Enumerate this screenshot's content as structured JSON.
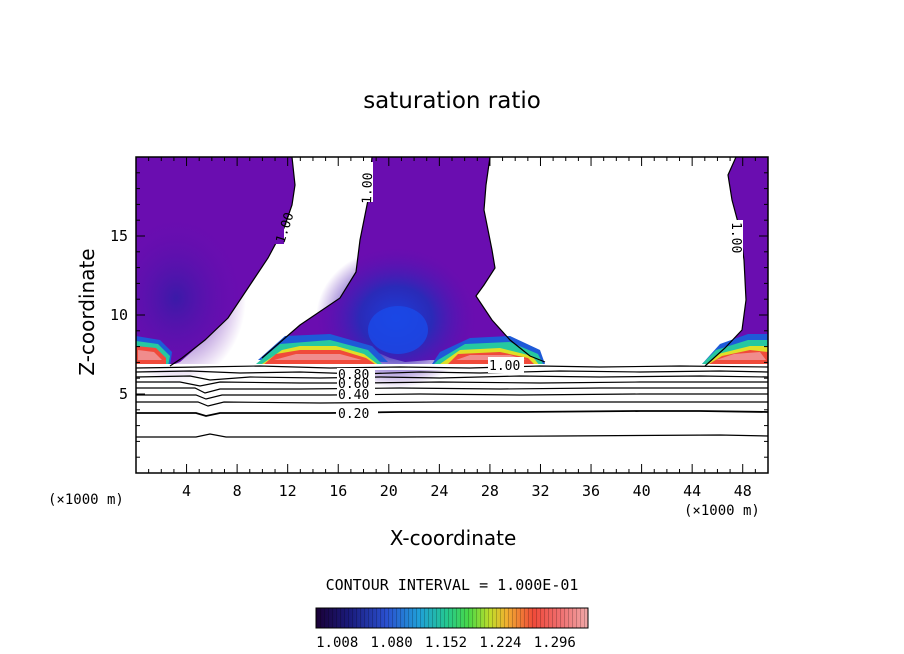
{
  "chart_data": {
    "type": "contour",
    "title": "saturation ratio",
    "xlabel": "X-coordinate",
    "ylabel": "Z-coordinate",
    "x_unit": "(×1000 m)",
    "y_unit": "(×1000 m)",
    "xlim": [
      0,
      50
    ],
    "ylim": [
      0,
      20
    ],
    "x_ticks": [
      4,
      8,
      12,
      16,
      20,
      24,
      28,
      32,
      36,
      40,
      44,
      48
    ],
    "y_ticks": [
      5,
      10,
      15
    ],
    "contour_interval_label": "CONTOUR INTERVAL = 1.000E-01",
    "contour_labels": [
      "1.00",
      "1.00",
      "1.00",
      "1.00",
      "0.80",
      "0.60",
      "0.40",
      "0.20"
    ],
    "colorbar": {
      "ticks": [
        "1.008",
        "1.080",
        "1.152",
        "1.224",
        "1.296"
      ],
      "colors": [
        "#1a0036",
        "#1c1a7a",
        "#2a46c8",
        "#1e88e0",
        "#22c6b4",
        "#38d860",
        "#9ad830",
        "#f0e41c",
        "#f08a2a",
        "#f04838",
        "#f07a7a",
        "#f0a0a0"
      ]
    }
  }
}
